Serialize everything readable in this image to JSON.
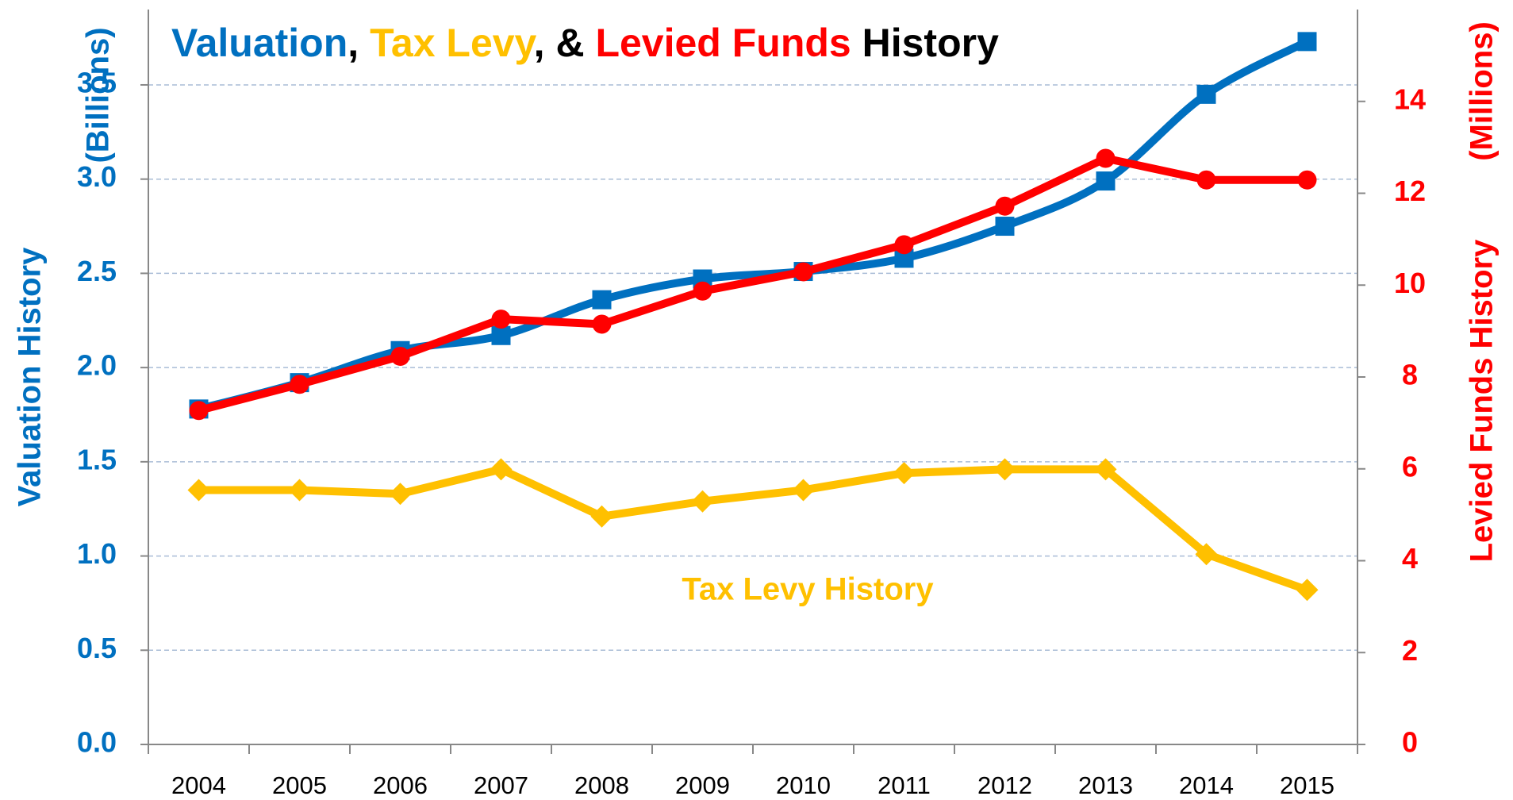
{
  "chart_data": {
    "type": "line",
    "title_segments": [
      ", ",
      ", & ",
      " History"
    ],
    "ylabel": "Valuation History",
    "ylabel_unit": "(Billions)",
    "y2label": "Levied Funds History",
    "y2label_unit": "(Millions)",
    "annotation": "Tax Levy History",
    "categories": [
      "2004",
      "2005",
      "2006",
      "2007",
      "2008",
      "2009",
      "2010",
      "2011",
      "2012",
      "2013",
      "2014",
      "2015"
    ],
    "series": [
      {
        "name": "Valuation",
        "color": "#0070c0",
        "marker": "square",
        "smooth": true,
        "axis": "y",
        "values": [
          1.78,
          1.92,
          2.09,
          2.17,
          2.36,
          2.47,
          2.51,
          2.58,
          2.75,
          2.99,
          3.45,
          3.73
        ]
      },
      {
        "name": "Tax Levy",
        "color": "#ffc000",
        "marker": "diamond",
        "smooth": false,
        "axis": "y",
        "values": [
          1.35,
          1.35,
          1.33,
          1.46,
          1.21,
          1.29,
          1.35,
          1.44,
          1.46,
          1.46,
          1.01,
          0.82
        ]
      },
      {
        "name": "Levied Funds",
        "color": "#ff0000",
        "marker": "circle",
        "smooth": false,
        "axis": "y2",
        "values": [
          7.27,
          7.84,
          8.45,
          9.26,
          9.15,
          9.87,
          10.29,
          10.88,
          11.72,
          12.76,
          12.29,
          12.29
        ]
      }
    ],
    "ylim": [
      0,
      3.9
    ],
    "yticks": [
      {
        "value": 0,
        "label": "0.0"
      },
      0.5,
      {
        "value": 1,
        "label": "1.0"
      },
      1.5,
      {
        "value": 2,
        "label": "2.0"
      },
      2.5,
      {
        "value": 3,
        "label": "3.0"
      },
      3.5
    ],
    "y2lim": [
      0,
      16
    ],
    "y2ticks": [
      0,
      2,
      4,
      6,
      8,
      10,
      12,
      14
    ],
    "grid": true
  }
}
